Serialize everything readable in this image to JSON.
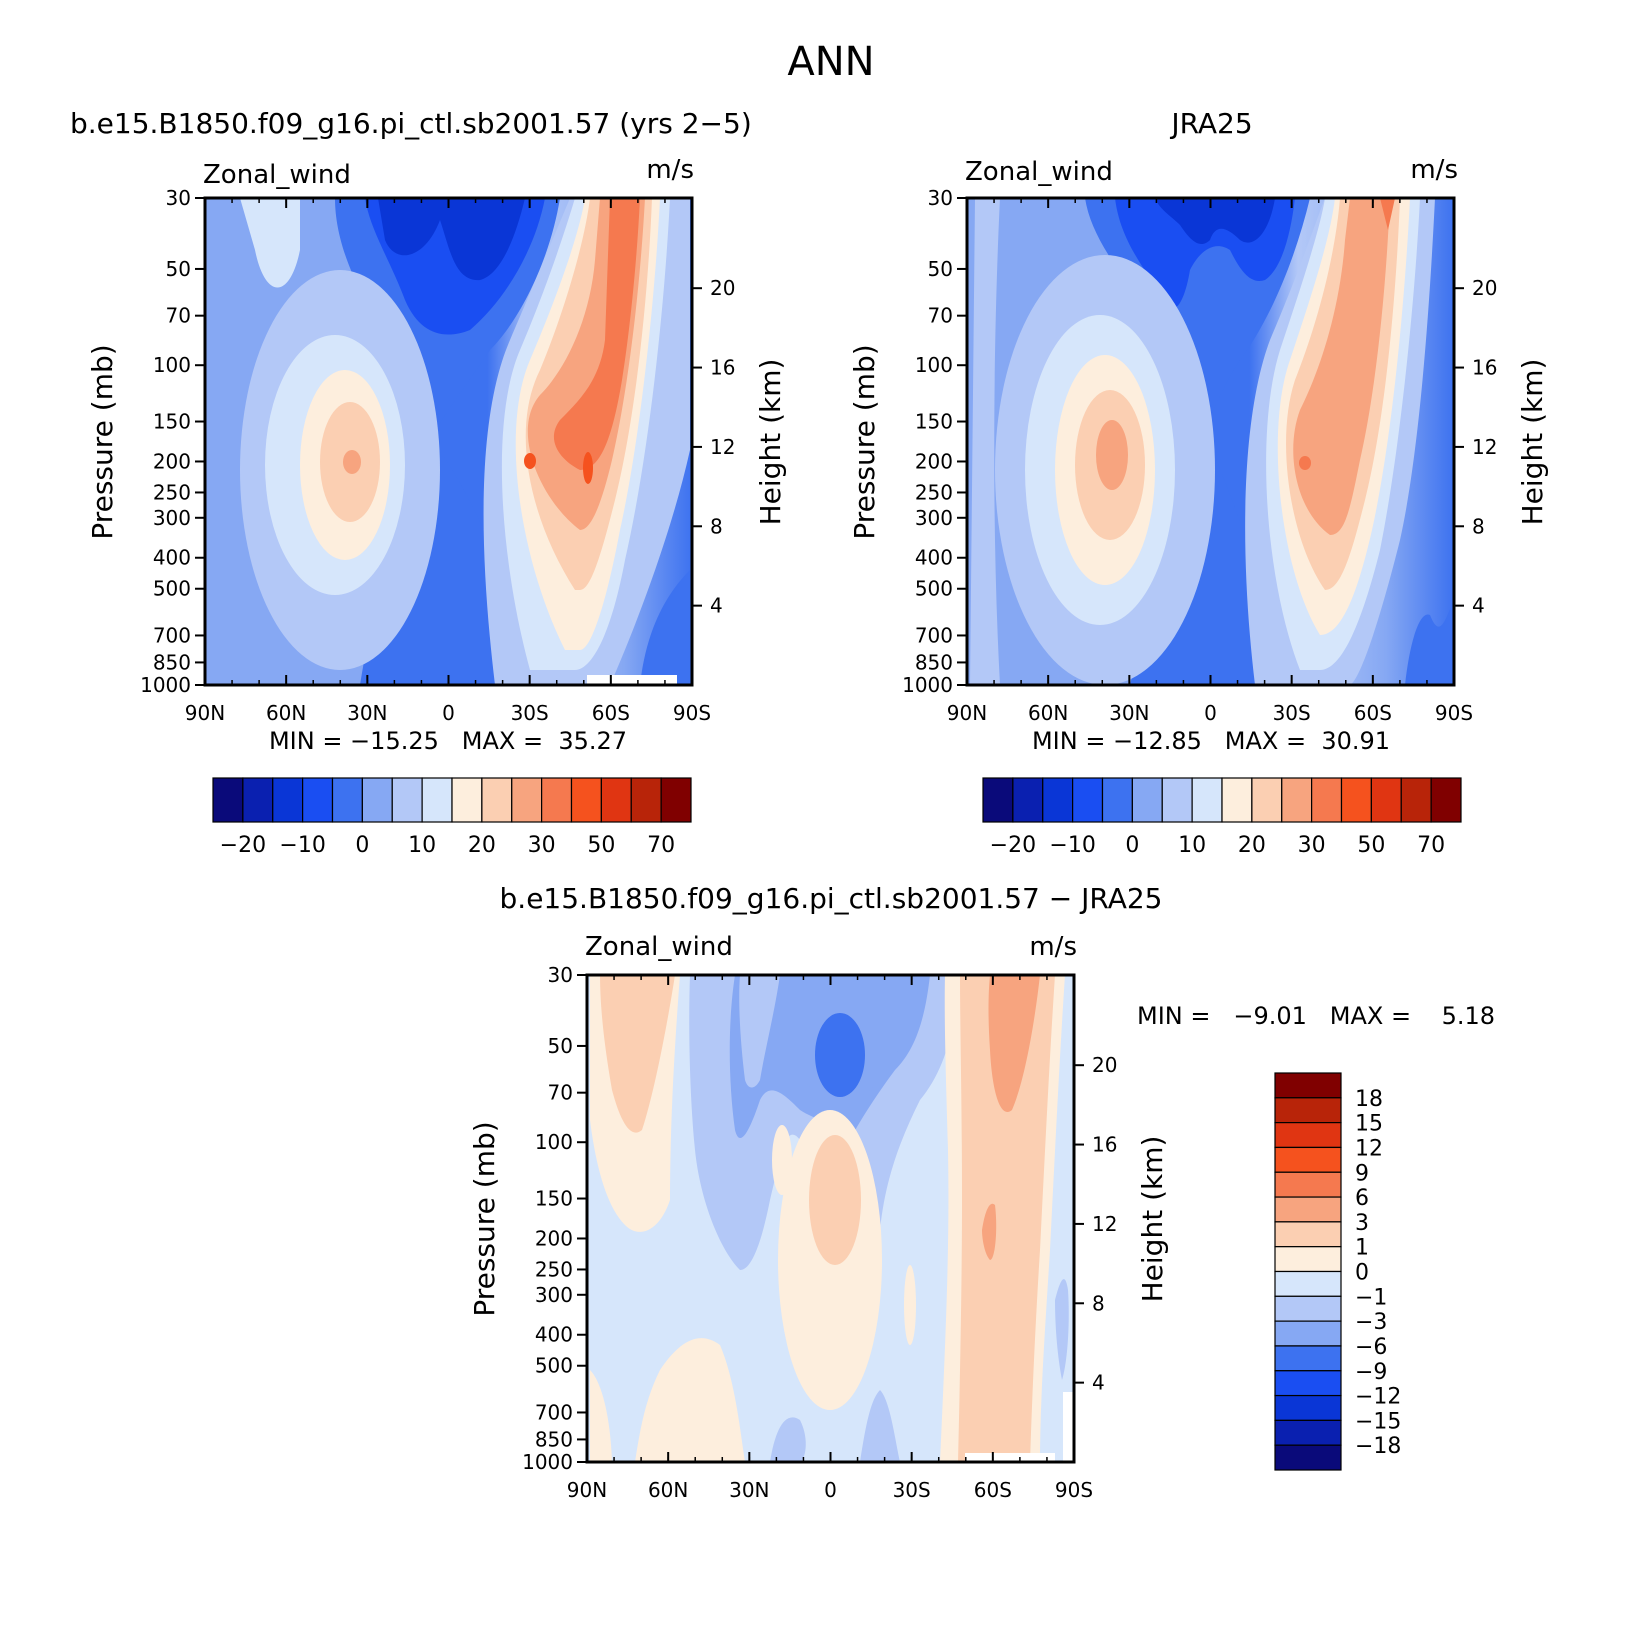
{
  "title": "ANN",
  "panels": [
    {
      "id": "model",
      "title": "b.e15.B1850.f09_g16.pi_ctl.sb2001.57 (yrs 2−5)",
      "left_label": "Zonal_wind",
      "right_label": "m/s",
      "ylabel": "Pressure (mb)",
      "ylabel_right": "Height (km)",
      "min_max": "MIN = −15.25   MAX =  35.27"
    },
    {
      "id": "obs",
      "title": "JRA25",
      "left_label": "Zonal_wind",
      "right_label": "m/s",
      "ylabel": "Pressure (mb)",
      "ylabel_right": "Height (km)",
      "min_max": "MIN = −12.85   MAX =  30.91"
    },
    {
      "id": "diff",
      "title": "b.e15.B1850.f09_g16.pi_ctl.sb2001.57 − JRA25",
      "left_label": "Zonal_wind",
      "right_label": "m/s",
      "ylabel": "Pressure (mb)",
      "ylabel_right": "Height (km)",
      "min_max": "MIN =   −9.01   MAX =    5.18"
    }
  ],
  "chart_data": [
    {
      "type": "heatmap",
      "name": "model",
      "x": [
        "90N",
        "60N",
        "30N",
        "0",
        "30S",
        "60S",
        "90S"
      ],
      "x_values": [
        90,
        60,
        30,
        0,
        -30,
        -60,
        -90
      ],
      "y_pressure_ticks": [
        30,
        50,
        70,
        100,
        150,
        200,
        250,
        300,
        400,
        500,
        700,
        850,
        1000
      ],
      "y_height_ticks": [
        4,
        8,
        12,
        16,
        20
      ],
      "min": -15.25,
      "max": 35.27,
      "jets": [
        {
          "lat": 35,
          "pressure": 200,
          "peak": 22
        },
        {
          "lat": -37,
          "pressure": 200,
          "peak": 29
        },
        {
          "lat": -60,
          "pressure": 30,
          "peak": 35
        }
      ],
      "colorbar": {
        "orientation": "horizontal",
        "labels": [
          "−20",
          "−10",
          "0",
          "10",
          "20",
          "30",
          "50",
          "70"
        ],
        "levels": [
          -25,
          -20,
          -15,
          -10,
          -5,
          0,
          5,
          10,
          15,
          20,
          25,
          30,
          40,
          50,
          60,
          70
        ],
        "colors": [
          "#0a0a7a",
          "#0a20b0",
          "#0a36d6",
          "#1a4ef2",
          "#3d72f0",
          "#86a8f3",
          "#b3c8f7",
          "#d6e6fb",
          "#fdeedd",
          "#fbcfb2",
          "#f7a47f",
          "#f5794f",
          "#f5521e",
          "#e03512",
          "#b82409",
          "#800000"
        ]
      }
    },
    {
      "type": "heatmap",
      "name": "obs",
      "x": [
        "90N",
        "60N",
        "30N",
        "0",
        "30S",
        "60S",
        "90S"
      ],
      "x_values": [
        90,
        60,
        30,
        0,
        -30,
        -60,
        -90
      ],
      "y_pressure_ticks": [
        30,
        50,
        70,
        100,
        150,
        200,
        250,
        300,
        400,
        500,
        700,
        850,
        1000
      ],
      "y_height_ticks": [
        4,
        8,
        12,
        16,
        20
      ],
      "min": -12.85,
      "max": 30.91,
      "jets": [
        {
          "lat": 33,
          "pressure": 200,
          "peak": 22
        },
        {
          "lat": -33,
          "pressure": 200,
          "peak": 27
        },
        {
          "lat": -60,
          "pressure": 30,
          "peak": 30
        }
      ],
      "colorbar": {
        "orientation": "horizontal",
        "labels": [
          "−20",
          "−10",
          "0",
          "10",
          "20",
          "30",
          "50",
          "70"
        ],
        "levels": [
          -25,
          -20,
          -15,
          -10,
          -5,
          0,
          5,
          10,
          15,
          20,
          25,
          30,
          40,
          50,
          60,
          70
        ],
        "colors": [
          "#0a0a7a",
          "#0a20b0",
          "#0a36d6",
          "#1a4ef2",
          "#3d72f0",
          "#86a8f3",
          "#b3c8f7",
          "#d6e6fb",
          "#fdeedd",
          "#fbcfb2",
          "#f7a47f",
          "#f5794f",
          "#f5521e",
          "#e03512",
          "#b82409",
          "#800000"
        ]
      }
    },
    {
      "type": "heatmap",
      "name": "diff",
      "x": [
        "90N",
        "60N",
        "30N",
        "0",
        "30S",
        "60S",
        "90S"
      ],
      "x_values": [
        90,
        60,
        30,
        0,
        -30,
        -60,
        -90
      ],
      "y_pressure_ticks": [
        30,
        50,
        70,
        100,
        150,
        200,
        250,
        300,
        400,
        500,
        700,
        850,
        1000
      ],
      "y_height_ticks": [
        4,
        8,
        12,
        16,
        20
      ],
      "min": -9.01,
      "max": 5.18,
      "colorbar": {
        "orientation": "vertical",
        "labels": [
          "18",
          "15",
          "12",
          "9",
          "6",
          "3",
          "1",
          "0",
          "−1",
          "−3",
          "−6",
          "−9",
          "−12",
          "−15",
          "−18"
        ],
        "colors_top_to_bottom": [
          "#800000",
          "#b82409",
          "#e03512",
          "#f5521e",
          "#f5794f",
          "#f7a47f",
          "#fbcfb2",
          "#fdeedd",
          "#d6e6fb",
          "#b3c8f7",
          "#86a8f3",
          "#3d72f0",
          "#1a4ef2",
          "#0a36d6",
          "#0a20b0",
          "#0a0a7a"
        ]
      }
    }
  ]
}
